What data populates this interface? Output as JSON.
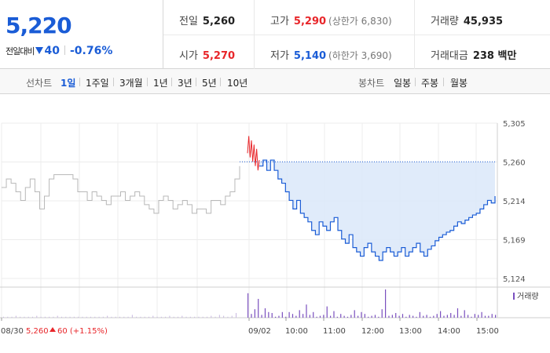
{
  "summary": {
    "price": "5,220",
    "change_label": "전일대비",
    "change_value": "40",
    "change_pct": "-0.76%",
    "stats": [
      {
        "label": "전일",
        "value": "5,260",
        "note": "",
        "tone": "black"
      },
      {
        "label": "시가",
        "value": "5,270",
        "note": "",
        "tone": "red"
      },
      {
        "label": "고가",
        "value": "5,290",
        "note": "(상한가 6,830)",
        "tone": "red"
      },
      {
        "label": "저가",
        "value": "5,140",
        "note": "(하한가 3,690)",
        "tone": "blue"
      },
      {
        "label": "거래량",
        "value": "45,935",
        "note": "",
        "tone": "black"
      },
      {
        "label": "거래대금",
        "value": "238 백만",
        "note": "",
        "tone": "black"
      }
    ]
  },
  "tabs": {
    "line_label": "선차트",
    "line_tabs": [
      "1일",
      "1주일",
      "3개월",
      "1년",
      "3년",
      "5년",
      "10년"
    ],
    "candle_label": "봉차트",
    "candle_tabs": [
      "일봉",
      "주봉",
      "월봉"
    ],
    "active": "1일"
  },
  "chart_data": {
    "type": "line",
    "y_ticks": [
      "5,305",
      "5,260",
      "5,214",
      "5,169",
      "5,124"
    ],
    "ylim": [
      5124,
      5305
    ],
    "prev_close": 5260,
    "x_ticks": [
      "08/30",
      "09/02",
      "10:00",
      "11:00",
      "12:00",
      "13:00",
      "14:00",
      "15:00"
    ],
    "prev_day_label": "08/30",
    "prev_day_close_text": "5,260",
    "prev_day_change_text": "60 (+1.15%)",
    "volume_legend": "거래량",
    "colors": {
      "up": "#e8262a",
      "down": "#1a5cd6",
      "prev_day": "#b8b8b8",
      "volume": "#7a4fbf",
      "fill": "#dde9f9"
    },
    "prev_day_series": [
      5230,
      5240,
      5235,
      5225,
      5215,
      5230,
      5240,
      5225,
      5205,
      5220,
      5240,
      5245,
      5245,
      5245,
      5245,
      5240,
      5225,
      5225,
      5215,
      5225,
      5220,
      5215,
      5210,
      5220,
      5220,
      5225,
      5215,
      5220,
      5225,
      5220,
      5210,
      5205,
      5200,
      5215,
      5220,
      5215,
      5205,
      5210,
      5215,
      5210,
      5200,
      5205,
      5205,
      5200,
      5215,
      5215,
      5210,
      5220,
      5225,
      5240,
      5255
    ],
    "today_open_series": [
      5270,
      5290,
      5265,
      5285,
      5260,
      5280,
      5255,
      5275,
      5250,
      5262
    ],
    "today_series": [
      5255,
      5262,
      5250,
      5262,
      5250,
      5240,
      5235,
      5225,
      5215,
      5205,
      5215,
      5200,
      5195,
      5190,
      5180,
      5175,
      5190,
      5185,
      5180,
      5190,
      5195,
      5180,
      5170,
      5165,
      5175,
      5160,
      5155,
      5150,
      5160,
      5165,
      5155,
      5150,
      5145,
      5155,
      5160,
      5155,
      5150,
      5155,
      5160,
      5150,
      5155,
      5160,
      5165,
      5155,
      5150,
      5158,
      5162,
      5168,
      5172,
      5175,
      5178,
      5180,
      5185,
      5190,
      5188,
      5192,
      5195,
      5198,
      5200,
      5205,
      5210,
      5215,
      5212,
      5220
    ],
    "prev_day_volume": [
      1,
      1,
      1,
      2,
      1,
      1,
      1,
      1,
      2,
      1,
      1,
      1,
      1,
      2,
      1,
      1,
      1,
      1,
      1,
      1,
      1,
      1,
      1,
      1,
      1,
      2,
      1,
      1,
      1,
      1,
      1,
      3,
      1,
      1,
      1,
      1,
      2,
      1,
      1,
      1,
      2,
      1,
      1,
      2,
      1,
      1,
      1,
      1,
      1,
      1,
      2,
      1,
      3,
      2,
      1,
      2,
      5
    ],
    "today_volume": [
      26,
      4,
      9,
      20,
      3,
      10,
      6,
      5,
      1,
      2,
      6,
      1,
      6,
      4,
      2,
      8,
      4,
      14,
      3,
      6,
      1,
      2,
      3,
      12,
      2,
      7,
      1,
      4,
      2,
      1,
      3,
      8,
      2,
      6,
      4,
      1,
      2,
      3,
      1,
      9,
      30,
      2,
      3,
      5,
      2,
      4,
      1,
      3,
      2,
      1,
      6,
      2,
      3,
      1,
      2,
      4,
      7,
      2,
      3,
      5,
      3,
      10,
      2,
      8,
      3,
      1,
      4,
      3,
      6,
      2,
      2,
      4,
      3
    ]
  }
}
